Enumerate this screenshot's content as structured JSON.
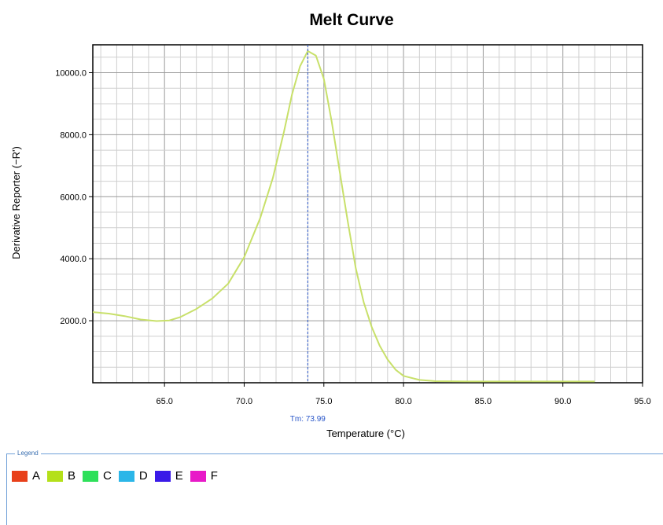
{
  "chart_data": {
    "type": "line",
    "title": "Melt Curve",
    "xlabel": "Temperature (°C)",
    "ylabel": "Derivative Reporter (−R')",
    "xlim": [
      60.5,
      95.0
    ],
    "ylim": [
      0,
      10900
    ],
    "x_ticks": [
      65.0,
      70.0,
      75.0,
      80.0,
      85.0,
      90.0,
      95.0
    ],
    "x_tick_labels": [
      "65.0",
      "70.0",
      "75.0",
      "80.0",
      "85.0",
      "90.0",
      "95.0"
    ],
    "y_ticks": [
      2000,
      4000,
      6000,
      8000,
      10000
    ],
    "y_tick_labels": [
      "2000.0",
      "4000.0",
      "6000.0",
      "8000.0",
      "10000.0"
    ],
    "grid": true,
    "tm": {
      "value": 73.99,
      "label": "Tm: 73.99"
    },
    "series": [
      {
        "color": "#c8e06a",
        "points": [
          [
            60.5,
            2280
          ],
          [
            61.5,
            2230
          ],
          [
            62.5,
            2150
          ],
          [
            63.5,
            2040
          ],
          [
            64.5,
            1990
          ],
          [
            65.3,
            2010
          ],
          [
            66.0,
            2120
          ],
          [
            67.0,
            2380
          ],
          [
            68.0,
            2720
          ],
          [
            69.0,
            3200
          ],
          [
            70.0,
            4050
          ],
          [
            71.0,
            5300
          ],
          [
            71.8,
            6600
          ],
          [
            72.5,
            8100
          ],
          [
            73.0,
            9300
          ],
          [
            73.5,
            10200
          ],
          [
            73.99,
            10700
          ],
          [
            74.5,
            10550
          ],
          [
            75.0,
            9800
          ],
          [
            75.5,
            8400
          ],
          [
            76.0,
            6800
          ],
          [
            76.5,
            5200
          ],
          [
            77.0,
            3700
          ],
          [
            77.5,
            2600
          ],
          [
            78.0,
            1800
          ],
          [
            78.5,
            1200
          ],
          [
            79.0,
            750
          ],
          [
            79.5,
            420
          ],
          [
            80.0,
            220
          ],
          [
            81.0,
            90
          ],
          [
            82.0,
            50
          ],
          [
            84.0,
            40
          ],
          [
            87.0,
            40
          ],
          [
            90.0,
            40
          ],
          [
            92.0,
            40
          ]
        ]
      }
    ]
  },
  "legend": {
    "title": "Legend",
    "items": [
      {
        "label": "A",
        "color": "#e8401a"
      },
      {
        "label": "B",
        "color": "#b4e01a"
      },
      {
        "label": "C",
        "color": "#2ee05a"
      },
      {
        "label": "D",
        "color": "#2bb6e8"
      },
      {
        "label": "E",
        "color": "#3a1ae8"
      },
      {
        "label": "F",
        "color": "#e81ac8"
      }
    ]
  }
}
